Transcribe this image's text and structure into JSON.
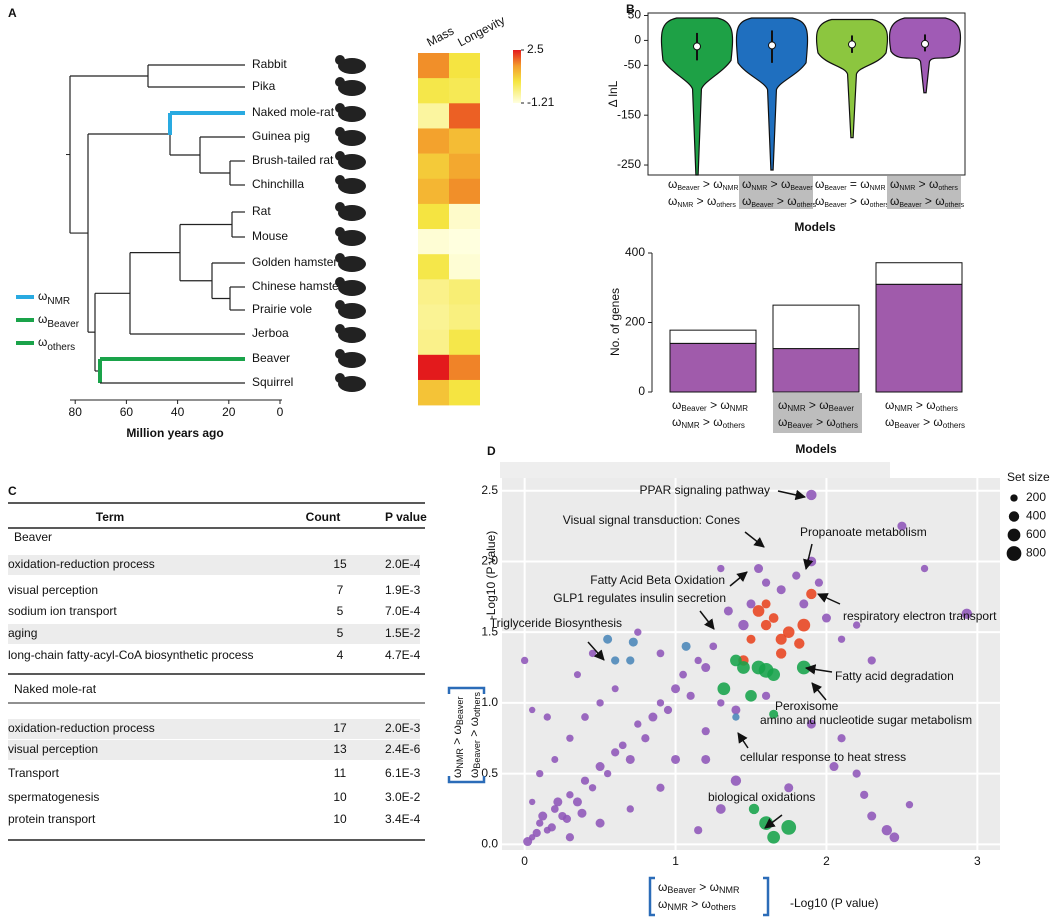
{
  "panels": [
    "A",
    "B",
    "C",
    "D"
  ],
  "tree": {
    "species": [
      "Rabbit",
      "Pika",
      "Naked mole-rat",
      "Guinea pig",
      "Brush-tailed rat",
      "Chinchilla",
      "Rat",
      "Mouse",
      "Golden hamster",
      "Chinese hamster",
      "Prairie vole",
      "Jerboa",
      "Beaver",
      "Squirrel"
    ],
    "x_label": "Million years ago",
    "xticks": [
      80,
      60,
      40,
      20,
      0
    ],
    "legend": [
      [
        "ω",
        "NMR"
      ],
      [
        "ω",
        "Beaver"
      ],
      [
        "ω",
        "others"
      ]
    ],
    "legend_colors": [
      "#29aae1",
      "#1aa34a",
      "#1aa34a"
    ]
  },
  "chart_data": [
    {
      "type": "heatmap",
      "columns": [
        "Mass",
        "Longevity"
      ],
      "values": [
        [
          1.5,
          0.3
        ],
        [
          0.2,
          0.1
        ],
        [
          -0.6,
          1.9
        ],
        [
          1.3,
          0.9
        ],
        [
          0.7,
          1.2
        ],
        [
          1.0,
          1.5
        ],
        [
          0.3,
          -1.0
        ],
        [
          -1.1,
          -1.2
        ],
        [
          0.2,
          -1.1
        ],
        [
          -0.4,
          -0.2
        ],
        [
          -0.5,
          -0.3
        ],
        [
          -0.4,
          0.2
        ],
        [
          2.5,
          1.6
        ],
        [
          0.8,
          0.3
        ]
      ],
      "colorbar_lim": [
        -1.21,
        2.5
      ],
      "colorbar_ticks": [
        2.5,
        -1.21
      ]
    },
    {
      "type": "violin",
      "y_label": "Δ lnL",
      "x_label": "Models",
      "ylim": [
        -270,
        55
      ],
      "yticks": [
        50,
        0,
        -50,
        -150,
        -250
      ],
      "categories": [
        [
          [
            "ω",
            "Beaver",
            " > ω",
            "NMR"
          ],
          [
            "ω",
            "NMR",
            " > ω",
            "others"
          ]
        ],
        [
          [
            "ω",
            "NMR",
            " > ω",
            "Beaver"
          ],
          [
            "ω",
            "Beaver",
            " > ω",
            "others"
          ]
        ],
        [
          [
            "ω",
            "Beaver",
            " = ω",
            "NMR"
          ],
          [
            "ω",
            "Beaver",
            " > ω",
            "others"
          ]
        ],
        [
          [
            "ω",
            "NMR",
            " > ω",
            "others"
          ],
          [
            "ω",
            "Beaver",
            " > ω",
            "others"
          ]
        ]
      ],
      "highlight": [
        false,
        true,
        false,
        true
      ],
      "colors": [
        "#1ea146",
        "#1f6fbf",
        "#8cc63f",
        "#a05bb5"
      ],
      "medians": [
        -12,
        -10,
        -8,
        -7
      ],
      "q1": [
        -40,
        -45,
        -25,
        -22
      ],
      "q3": [
        15,
        20,
        10,
        12
      ],
      "mins": [
        -270,
        -260,
        -195,
        -105
      ],
      "maxs": [
        45,
        45,
        42,
        45
      ]
    },
    {
      "type": "bar",
      "y_label": "No. of genes",
      "x_label": "Models",
      "ylim": [
        0,
        400
      ],
      "yticks": [
        0,
        200,
        400
      ],
      "categories": [
        [
          [
            "ω",
            "Beaver",
            " > ω",
            "NMR"
          ],
          [
            "ω",
            "NMR",
            " > ω",
            "others"
          ]
        ],
        [
          [
            "ω",
            "NMR",
            " > ω",
            "Beaver"
          ],
          [
            "ω",
            "Beaver",
            " > ω",
            "others"
          ]
        ],
        [
          [
            "ω",
            "NMR",
            " > ω",
            "others"
          ],
          [
            "ω",
            "Beaver",
            " > ω",
            "others"
          ]
        ]
      ],
      "highlight": [
        false,
        true,
        false
      ],
      "series": [
        {
          "color": "#a05bab",
          "values": [
            140,
            125,
            310
          ]
        },
        {
          "color": "#ffffff",
          "values": [
            38,
            125,
            62
          ]
        }
      ]
    },
    {
      "type": "scatter",
      "x_label": "-Log10 (P value)",
      "y_label": "-Log10 (P value)",
      "x_model": [
        [
          "ω",
          "Beaver",
          " > ω",
          "NMR"
        ],
        [
          "ω",
          "NMR",
          " > ω",
          "others"
        ]
      ],
      "y_model": [
        [
          "ω",
          "NMR",
          " > ω",
          "Beaver"
        ],
        [
          "ω",
          "Beaver",
          " > ω",
          "others"
        ]
      ],
      "xlim": [
        -0.15,
        3.15
      ],
      "ylim": [
        -0.04,
        2.59
      ],
      "xticks": [
        0,
        1,
        2,
        3
      ],
      "yticks": [
        {
          "value": 0,
          "label": "0.0"
        },
        0.5,
        {
          "value": 1,
          "label": "1.0"
        },
        1.5,
        {
          "value": 2,
          "label": "2.0"
        },
        2.5
      ],
      "grid": true,
      "size_legend": {
        "title": "Set size",
        "values": [
          200,
          400,
          600,
          800
        ]
      },
      "series": [
        {
          "color": "#8e55b8",
          "x": [
            0.05,
            0.1,
            0.15,
            0.2,
            0.25,
            0.3,
            0.35,
            0.4,
            0.45,
            0.5,
            0.55,
            0.6,
            0.65,
            0.7,
            0.75,
            0.8,
            0.85,
            0.9,
            0.95,
            1.0,
            1.05,
            1.1,
            1.15,
            1.2,
            1.25,
            0.05,
            0.1,
            0.2,
            0.3,
            0.4,
            0.5,
            0.6,
            0.3,
            0.5,
            0.7,
            0.9,
            1.0,
            1.2,
            1.3,
            0.15,
            0.0,
            0.35,
            0.45,
            0.75,
            0.9,
            1.35,
            1.45,
            1.5,
            1.55,
            1.6,
            1.7,
            1.8,
            1.85,
            1.9,
            1.9,
            1.95,
            2.0,
            2.1,
            2.3,
            2.5,
            2.93,
            2.55,
            2.25,
            2.4,
            2.3,
            2.45,
            1.4,
            1.3,
            1.2,
            1.15,
            2.05,
            1.75,
            2.2,
            2.2,
            0.05,
            1.3,
            2.65,
            1.4,
            1.6,
            1.9,
            2.1,
            0.02,
            0.08,
            0.12,
            0.18,
            0.22,
            0.28,
            0.38
          ],
          "y": [
            0.05,
            0.15,
            0.1,
            0.25,
            0.2,
            0.35,
            0.3,
            0.45,
            0.4,
            0.55,
            0.5,
            0.65,
            0.7,
            0.6,
            0.85,
            0.75,
            0.9,
            1.0,
            0.95,
            1.1,
            1.2,
            1.05,
            1.3,
            1.25,
            1.4,
            0.3,
            0.5,
            0.6,
            0.75,
            0.9,
            1.0,
            1.1,
            0.05,
            0.15,
            0.25,
            0.4,
            0.6,
            0.8,
            1.0,
            0.9,
            1.3,
            1.2,
            1.35,
            1.5,
            1.35,
            1.65,
            1.55,
            1.7,
            1.95,
            1.85,
            1.8,
            1.9,
            1.7,
            2.47,
            2.0,
            1.85,
            1.6,
            1.45,
            1.3,
            2.25,
            1.63,
            0.28,
            0.35,
            0.1,
            0.2,
            0.05,
            0.45,
            0.25,
            0.6,
            0.1,
            0.55,
            0.4,
            0.5,
            1.55,
            0.95,
            1.95,
            1.95,
            0.95,
            1.05,
            0.85,
            0.75,
            0.02,
            0.08,
            0.2,
            0.12,
            0.3,
            0.18,
            0.22
          ],
          "sizes": [
            150,
            200,
            180,
            220,
            250,
            200,
            300,
            250,
            200,
            300,
            200,
            250,
            220,
            300,
            200,
            250,
            300,
            200,
            250,
            300,
            220,
            250,
            200,
            300,
            220,
            150,
            200,
            180,
            200,
            220,
            200,
            180,
            250,
            300,
            200,
            250,
            300,
            250,
            200,
            200,
            200,
            180,
            200,
            200,
            220,
            300,
            400,
            300,
            300,
            250,
            300,
            250,
            300,
            400,
            350,
            250,
            300,
            200,
            250,
            300,
            400,
            200,
            250,
            400,
            300,
            350,
            400,
            350,
            300,
            250,
            300,
            300,
            250,
            200,
            150,
            200,
            200,
            300,
            250,
            300,
            250,
            300,
            250,
            300,
            250,
            300,
            250,
            300
          ]
        },
        {
          "color": "#e8431f",
          "x": [
            1.55,
            1.6,
            1.65,
            1.7,
            1.75,
            1.85,
            1.7,
            1.45,
            1.9,
            1.6,
            1.5,
            1.82
          ],
          "y": [
            1.65,
            1.55,
            1.6,
            1.45,
            1.5,
            1.55,
            1.35,
            1.3,
            1.77,
            1.7,
            1.45,
            1.42
          ],
          "sizes": [
            500,
            400,
            350,
            450,
            500,
            600,
            400,
            400,
            400,
            300,
            300,
            400
          ]
        },
        {
          "color": "#4a86b8",
          "x": [
            0.55,
            0.72,
            0.6,
            0.7,
            1.07,
            1.4
          ],
          "y": [
            1.45,
            1.43,
            1.3,
            1.3,
            1.4,
            0.9
          ],
          "sizes": [
            300,
            300,
            250,
            250,
            300,
            200
          ]
        },
        {
          "color": "#16a34a",
          "x": [
            1.4,
            1.45,
            1.55,
            1.6,
            1.65,
            1.32,
            1.5,
            1.65,
            1.85,
            1.6,
            1.65,
            1.75,
            1.52
          ],
          "y": [
            1.3,
            1.25,
            1.25,
            1.23,
            1.2,
            1.1,
            1.05,
            0.92,
            1.25,
            0.15,
            0.05,
            0.12,
            0.25
          ],
          "sizes": [
            500,
            600,
            700,
            800,
            600,
            600,
            500,
            300,
            700,
            700,
            600,
            800,
            400
          ]
        }
      ],
      "annotations": [
        {
          "text": "PPAR signaling pathway",
          "color": "#e8251f"
        },
        {
          "text": "Visual signal transduction: Cones",
          "color": "#e8251f"
        },
        {
          "text": "Propanoate metabolism",
          "color": "#e8251f"
        },
        {
          "text": "Fatty Acid Beta Oxidation",
          "color": "#e8251f"
        },
        {
          "text": "GLP1 regulates insulin secretion",
          "color": "#2b7bba"
        },
        {
          "text": "respiratory electron transport",
          "color": "#e8251f"
        },
        {
          "text": "Triglyceride Biosynthesis",
          "color": "#2b7bba"
        },
        {
          "text": "Fatty acid degradation",
          "color": "#e8251f"
        },
        {
          "text": "Peroxisome",
          "color": "#e8251f"
        },
        {
          "text": "amino and nucleotide sugar metabolism",
          "color": "#1aa34a"
        },
        {
          "text": "cellular response to heat stress",
          "color": "#1aa34a"
        },
        {
          "text": "biological oxidations",
          "color": "#1aa34a"
        }
      ]
    }
  ],
  "table": {
    "header": [
      "Term",
      "Count",
      "P value"
    ],
    "groups": [
      {
        "name": "Beaver",
        "color": "#1aa34a",
        "rows": [
          [
            "oxidation-reduction process",
            15,
            "2.0E-4"
          ],
          [
            "visual perception",
            7,
            "1.9E-3"
          ],
          [
            "sodium ion transport",
            5,
            "7.0E-4"
          ],
          [
            "aging",
            5,
            "1.5E-2"
          ],
          [
            "long-chain fatty-acyl-CoA biosynthetic process",
            4,
            "4.7E-4"
          ]
        ],
        "shaded": [
          true,
          false,
          false,
          true,
          false
        ]
      },
      {
        "name": "Naked mole-rat",
        "color": "#29aae1",
        "rows": [
          [
            "oxidation-reduction process",
            17,
            "2.0E-3"
          ],
          [
            "visual perception",
            13,
            "2.4E-6"
          ],
          [
            "Transport",
            11,
            "6.1E-3"
          ],
          [
            "spermatogenesis",
            10,
            "3.0E-2"
          ],
          [
            "protein transport",
            10,
            "3.4E-4"
          ]
        ],
        "shaded": [
          true,
          true,
          false,
          false,
          false
        ]
      }
    ]
  }
}
